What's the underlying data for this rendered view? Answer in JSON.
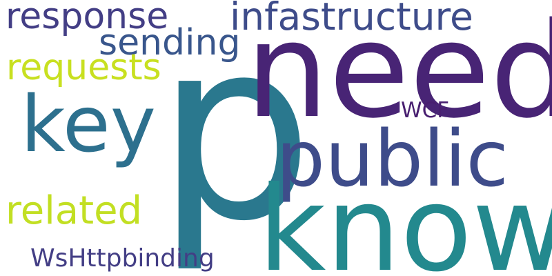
{
  "words": [
    {
      "text": "p",
      "color": "#2a788e"
    },
    {
      "text": "need",
      "color": "#482475"
    },
    {
      "text": "know",
      "color": "#23898e"
    },
    {
      "text": "public",
      "color": "#3e4c8a"
    },
    {
      "text": "key",
      "color": "#2d708e"
    },
    {
      "text": "infastructure",
      "color": "#3e4c8a"
    },
    {
      "text": "response",
      "color": "#433e85"
    },
    {
      "text": "sending",
      "color": "#39568c"
    },
    {
      "text": "requests",
      "color": "#c8e020"
    },
    {
      "text": "related",
      "color": "#c2df23"
    },
    {
      "text": "WCF",
      "color": "#481f70"
    },
    {
      "text": "WsHttpbinding",
      "color": "#433e85"
    }
  ]
}
